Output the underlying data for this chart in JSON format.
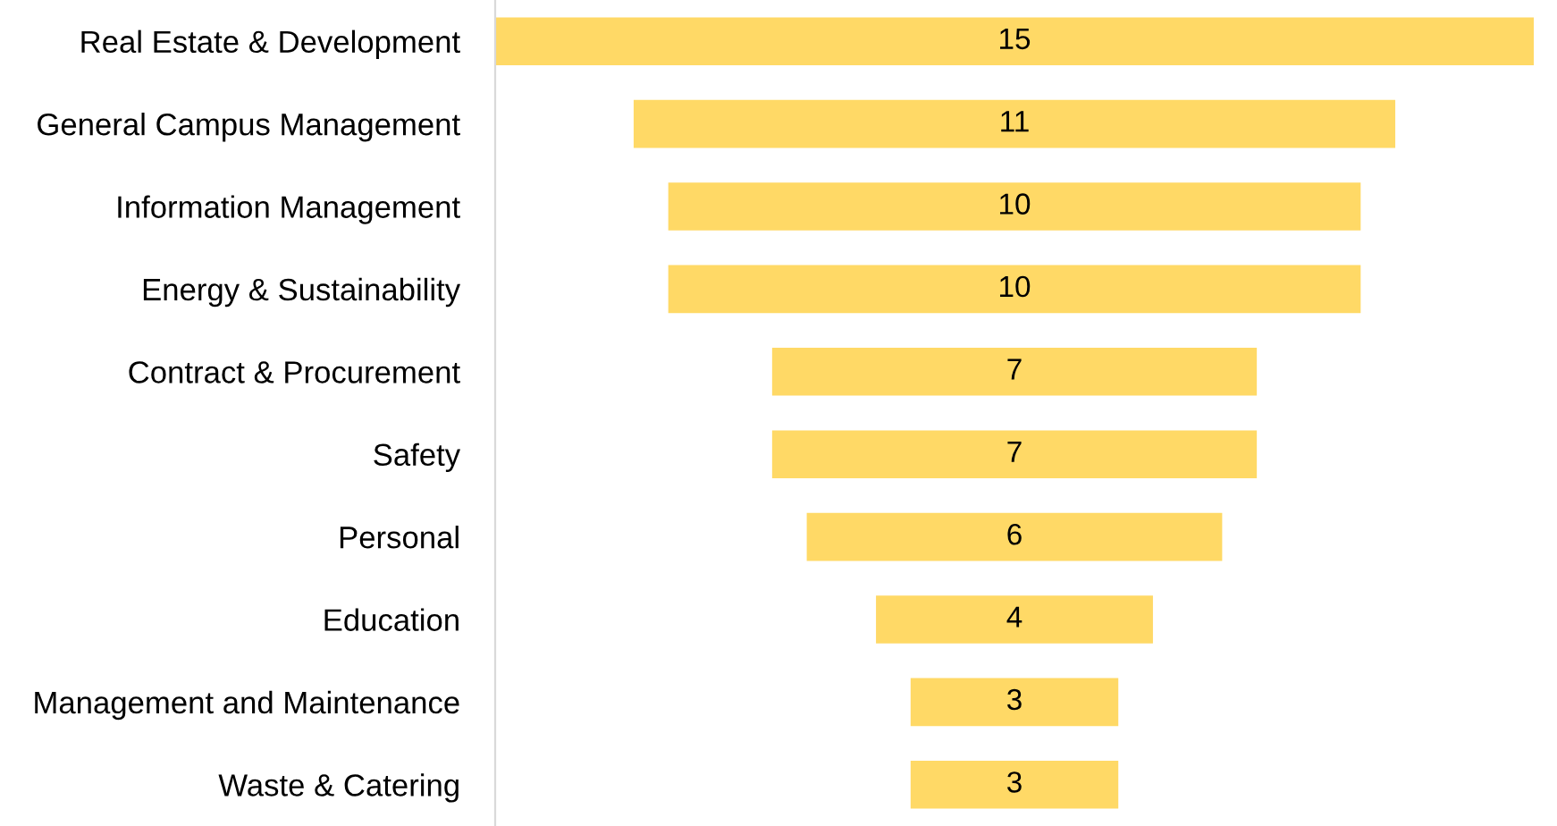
{
  "chart_data": {
    "type": "other",
    "categories": [
      "Real Estate & Development",
      "General Campus Management",
      "Information Management",
      "Energy & Sustainability",
      "Contract & Procurement",
      "Safety",
      "Personal",
      "Education",
      "Management and Maintenance",
      "Waste & Catering"
    ],
    "values": [
      15,
      11,
      10,
      10,
      7,
      7,
      6,
      4,
      3,
      3
    ],
    "color": "#ffd966",
    "data_labels": true
  }
}
